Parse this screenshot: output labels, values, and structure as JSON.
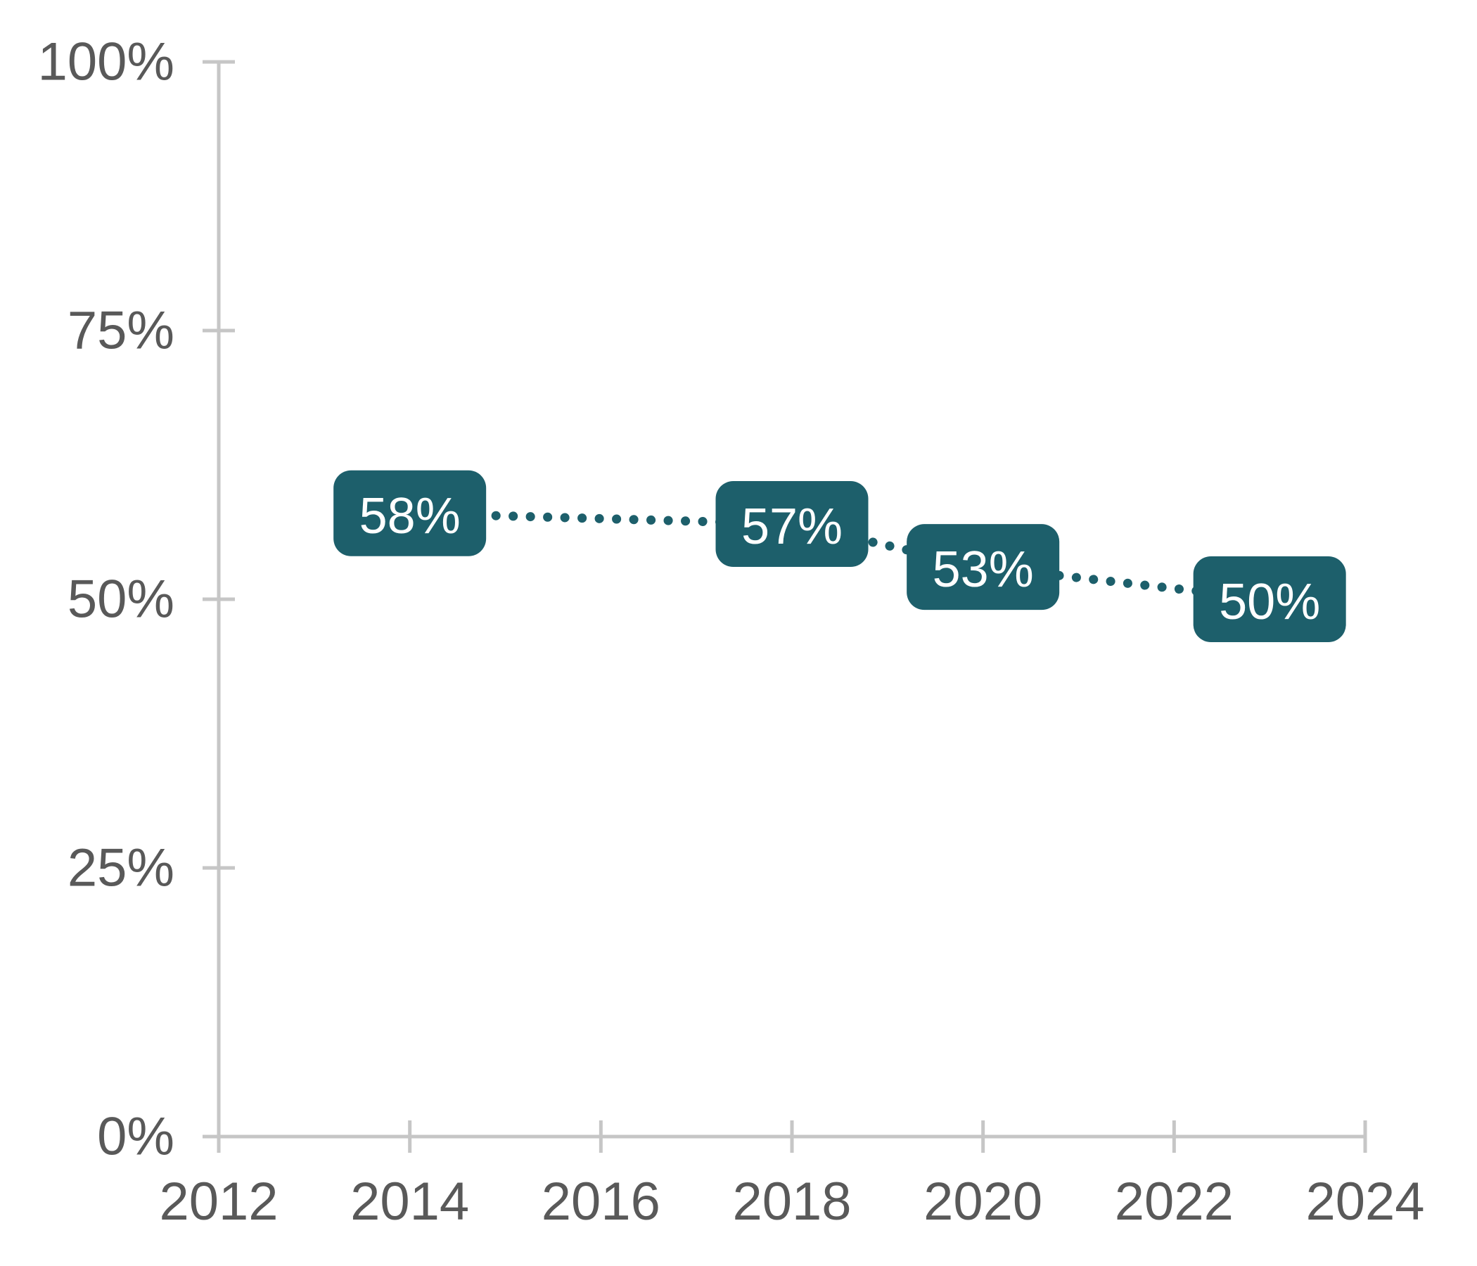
{
  "chart_data": {
    "type": "line",
    "title": "",
    "xlabel": "",
    "ylabel": "",
    "x": [
      2014,
      2018,
      2020,
      2023
    ],
    "series": [
      {
        "name": "percent",
        "values": [
          58,
          57,
          53,
          50
        ],
        "point_labels": [
          "58%",
          "57%",
          "53%",
          "50%"
        ]
      }
    ],
    "xlim": [
      2012,
      2024
    ],
    "ylim": [
      0,
      100
    ],
    "x_tick_values": [
      2012,
      2014,
      2016,
      2018,
      2020,
      2022,
      2024
    ],
    "x_tick_labels": [
      "2012",
      "2014",
      "2016",
      "2018",
      "2020",
      "2022",
      "2024"
    ],
    "y_tick_values": [
      0,
      25,
      50,
      75,
      100
    ],
    "y_tick_labels": [
      "0%",
      "25%",
      "50%",
      "75%",
      "100%"
    ],
    "grid": false,
    "legend": false,
    "line_style": "dotted",
    "colors": {
      "line": "#1d5f6b",
      "label_bg": "#1d5f6b",
      "label_text": "#ffffff",
      "axis": "#c6c6c6",
      "tick_text": "#595959",
      "background": "#ffffff"
    }
  }
}
